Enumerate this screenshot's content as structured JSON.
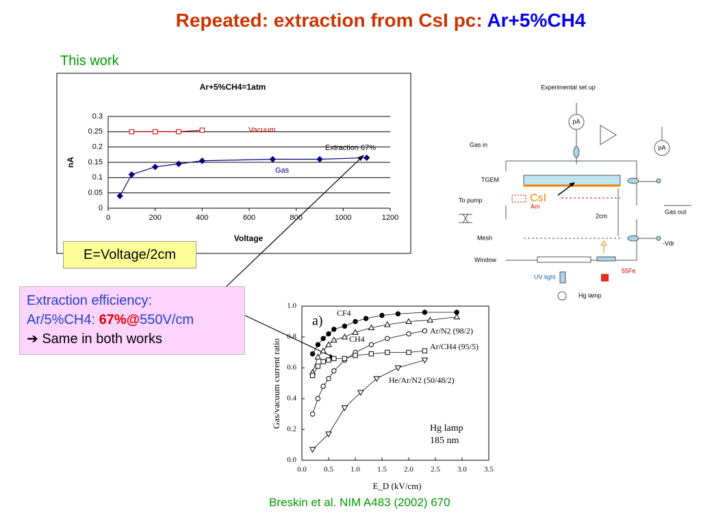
{
  "slide": {
    "title_main": "Repeated: extraction from CsI pc: ",
    "title_gas": "Ar+5%CH4",
    "this_work": "This work",
    "e_label": "E=Voltage/2cm",
    "box": {
      "line1": "Extraction efficiency:",
      "line2_a": "Ar/5%CH4: ",
      "line2_b": "67%@",
      "line2_c": "550V/cm",
      "line3": "➔ Same in both works"
    },
    "citation": "Breskin et al. NIM A483 (2002) 670"
  },
  "chart_data": [
    {
      "type": "line",
      "title": "Ar+5%CH4=1atm",
      "x_label": "Voltage",
      "y_label": "nA",
      "xlim": [
        0,
        1200
      ],
      "xticks": [
        0,
        200,
        400,
        600,
        800,
        1000,
        1200
      ],
      "ylim": [
        0,
        0.3
      ],
      "yticks": [
        0,
        0.05,
        0.1,
        0.15,
        0.2,
        0.25,
        0.3
      ],
      "grid": true,
      "series": [
        {
          "name": "Vacuum",
          "color": "#cc0000",
          "marker": "square",
          "x": [
            100,
            200,
            300,
            400
          ],
          "values": [
            0.25,
            0.25,
            0.25,
            0.255
          ]
        },
        {
          "name": "Gas",
          "color": "#000080",
          "marker": "diamond",
          "x": [
            50,
            100,
            200,
            300,
            400,
            700,
            900,
            1100
          ],
          "values": [
            0.04,
            0.11,
            0.135,
            0.145,
            0.155,
            0.16,
            0.16,
            0.165
          ]
        }
      ],
      "annotations": [
        "Extraction 67%"
      ]
    },
    {
      "type": "line",
      "x_label": "E_D (kV/cm)",
      "y_label": "Gas/vacuum current ratio",
      "xlim": [
        0,
        3.5
      ],
      "xticks": [
        {
          "value": 0,
          "label": "0.0"
        },
        0.5,
        {
          "value": 1,
          "label": "1.0"
        },
        1.5,
        {
          "value": 2,
          "label": "2.0"
        },
        2.5,
        {
          "value": 3,
          "label": "3.0"
        },
        3.5
      ],
      "ylim": [
        0,
        1
      ],
      "yticks": [
        {
          "value": 0,
          "label": "0.0"
        },
        0.2,
        0.4,
        0.6,
        0.8,
        {
          "value": 1,
          "label": "1.0"
        }
      ],
      "grid": false,
      "series": [
        {
          "name": "CF4",
          "color": "#000000",
          "marker": "filled-circle",
          "x": [
            0.2,
            0.3,
            0.4,
            0.5,
            0.6,
            0.8,
            1.0,
            1.2,
            1.5,
            1.8,
            2.3,
            2.9
          ],
          "values": [
            0.69,
            0.75,
            0.79,
            0.82,
            0.85,
            0.87,
            0.9,
            0.92,
            0.94,
            0.95,
            0.96,
            0.96
          ]
        },
        {
          "name": "Ar/N2 (98/2)",
          "color": "#000000",
          "marker": "triangle",
          "x": [
            0.2,
            0.3,
            0.4,
            0.5,
            0.6,
            0.8,
            1.0,
            1.3,
            1.6,
            2.0,
            2.4,
            2.9
          ],
          "values": [
            0.57,
            0.67,
            0.71,
            0.75,
            0.78,
            0.8,
            0.83,
            0.86,
            0.88,
            0.9,
            0.91,
            0.93
          ]
        },
        {
          "name": "CH4",
          "color": "#000000",
          "marker": "circle",
          "x": [
            0.2,
            0.3,
            0.4,
            0.5,
            0.6,
            0.8,
            1.0,
            1.3,
            1.6,
            2.0,
            2.3
          ],
          "values": [
            0.3,
            0.4,
            0.48,
            0.53,
            0.58,
            0.65,
            0.7,
            0.75,
            0.79,
            0.82,
            0.84
          ]
        },
        {
          "name": "Ar/CH4 (95/5)",
          "color": "#000000",
          "marker": "square",
          "x": [
            0.2,
            0.3,
            0.4,
            0.5,
            0.6,
            0.8,
            1.0,
            1.3,
            1.6,
            2.0,
            2.3
          ],
          "values": [
            0.55,
            0.61,
            0.64,
            0.65,
            0.66,
            0.66,
            0.68,
            0.69,
            0.7,
            0.7,
            0.71
          ]
        },
        {
          "name": "He/Ar/N2 (50/48/2)",
          "color": "#000000",
          "marker": "down-triangle",
          "x": [
            0.2,
            0.5,
            0.8,
            1.1,
            1.4,
            1.8,
            2.3
          ],
          "values": [
            0.07,
            0.17,
            0.34,
            0.44,
            0.53,
            0.6,
            0.65
          ]
        }
      ],
      "annotations": [
        "a)",
        "Hg lamp",
        "185 nm"
      ]
    }
  ],
  "diagram": {
    "title": "Experimental set up",
    "pa1": "pA",
    "pa2": "pA",
    "gas_in": "Gas  in",
    "tgem": "TGEM",
    "csi": "CsI",
    "am": "Am",
    "to_pump": "To pump",
    "gap": "2cm",
    "gas_out": "Gas out",
    "mesh": "Mesh",
    "vdr": "-Vdr",
    "window": "Window",
    "uv_light": "UV light",
    "fe": "55Fe",
    "hg_lamp": "Hg lamp"
  }
}
